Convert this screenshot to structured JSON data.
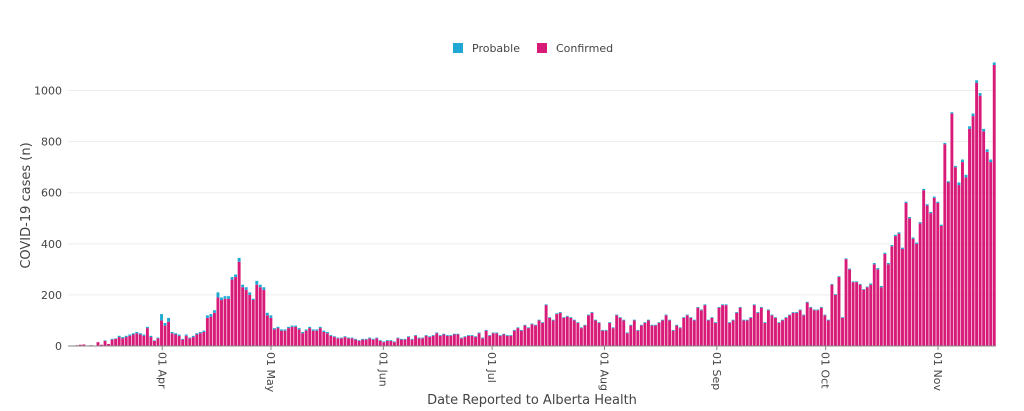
{
  "colors": {
    "probable": "#1fa8d4",
    "confirmed": "#d81b78",
    "grid": "#ececec",
    "axis": "#888888"
  },
  "legend": {
    "items": [
      {
        "name": "Probable",
        "color": "#1fa8d4"
      },
      {
        "name": "Confirmed",
        "color": "#d81b78"
      }
    ],
    "placement": "top-center"
  },
  "chart_data": {
    "type": "bar",
    "stacked": true,
    "xlabel": "Date Reported to Alberta Health",
    "ylabel": "COVID-19 cases (n)",
    "ylim": [
      0,
      1100
    ],
    "yticks": [
      0,
      200,
      400,
      600,
      800,
      1000
    ],
    "x_start": "2020-03-06",
    "x_end": "2020-11-17",
    "xticks": [
      {
        "date": "2020-04-01",
        "label": "01 Apr"
      },
      {
        "date": "2020-05-01",
        "label": "01 May"
      },
      {
        "date": "2020-06-01",
        "label": "01 Jun"
      },
      {
        "date": "2020-07-01",
        "label": "01 Jul"
      },
      {
        "date": "2020-08-01",
        "label": "01 Aug"
      },
      {
        "date": "2020-09-01",
        "label": "01 Sep"
      },
      {
        "date": "2020-10-01",
        "label": "01 Oct"
      },
      {
        "date": "2020-11-01",
        "label": "01 Nov"
      }
    ],
    "grid": true,
    "series": [
      {
        "name": "Confirmed",
        "values": [
          1,
          2,
          3,
          5,
          6,
          1,
          3,
          2,
          15,
          5,
          20,
          8,
          25,
          28,
          35,
          30,
          35,
          40,
          45,
          50,
          45,
          40,
          70,
          35,
          20,
          30,
          100,
          80,
          95,
          50,
          45,
          40,
          25,
          40,
          30,
          35,
          45,
          50,
          55,
          110,
          115,
          130,
          190,
          180,
          185,
          185,
          260,
          270,
          330,
          230,
          220,
          200,
          180,
          240,
          230,
          220,
          120,
          110,
          65,
          70,
          60,
          60,
          70,
          75,
          75,
          65,
          50,
          60,
          70,
          60,
          60,
          70,
          55,
          50,
          40,
          35,
          30,
          30,
          35,
          30,
          30,
          25,
          20,
          25,
          25,
          30,
          25,
          30,
          20,
          15,
          20,
          20,
          15,
          30,
          25,
          25,
          35,
          25,
          40,
          30,
          30,
          40,
          35,
          40,
          50,
          40,
          45,
          40,
          40,
          45,
          45,
          30,
          35,
          40,
          40,
          35,
          50,
          30,
          60,
          40,
          50,
          50,
          40,
          45,
          40,
          40,
          60,
          70,
          60,
          80,
          70,
          85,
          80,
          100,
          90,
          160,
          110,
          100,
          125,
          130,
          110,
          115,
          110,
          100,
          90,
          70,
          80,
          120,
          130,
          100,
          90,
          60,
          60,
          90,
          70,
          120,
          110,
          100,
          50,
          80,
          100,
          60,
          80,
          90,
          100,
          80,
          80,
          90,
          100,
          120,
          100,
          60,
          80,
          70,
          110,
          120,
          110,
          100,
          150,
          140,
          160,
          100,
          110,
          90,
          150,
          160,
          160,
          90,
          100,
          130,
          150,
          100,
          100,
          110,
          160,
          130,
          150,
          90,
          140,
          120,
          110,
          90,
          100,
          110,
          120,
          130,
          130,
          140,
          120,
          170,
          150,
          140,
          140,
          150,
          120,
          100,
          240,
          200,
          270,
          110,
          340,
          300,
          250,
          250,
          240,
          220,
          230,
          240,
          320,
          300,
          230,
          360,
          320,
          390,
          430,
          440,
          380,
          560,
          500,
          420,
          400,
          480,
          610,
          550,
          520,
          580,
          560,
          470,
          790,
          640,
          910,
          700,
          630,
          720,
          660,
          850,
          900,
          1030,
          980,
          840,
          760,
          720,
          1100
        ],
        "color": "#d81b78"
      },
      {
        "name": "Probable",
        "values": [
          0,
          0,
          0,
          0,
          0,
          0,
          0,
          0,
          0,
          0,
          2,
          0,
          3,
          2,
          5,
          5,
          5,
          5,
          5,
          5,
          5,
          5,
          5,
          5,
          2,
          3,
          25,
          10,
          15,
          5,
          5,
          5,
          3,
          5,
          3,
          5,
          5,
          5,
          5,
          10,
          10,
          10,
          20,
          10,
          10,
          10,
          10,
          10,
          15,
          10,
          10,
          10,
          5,
          15,
          10,
          10,
          10,
          10,
          5,
          5,
          5,
          5,
          5,
          5,
          5,
          5,
          5,
          5,
          5,
          5,
          5,
          5,
          5,
          5,
          3,
          3,
          3,
          3,
          3,
          3,
          3,
          3,
          3,
          3,
          3,
          3,
          3,
          3,
          3,
          3,
          3,
          3,
          3,
          3,
          3,
          3,
          3,
          3,
          3,
          3,
          3,
          3,
          3,
          3,
          3,
          3,
          3,
          3,
          3,
          3,
          3,
          3,
          3,
          3,
          3,
          3,
          3,
          3,
          3,
          3,
          3,
          3,
          3,
          3,
          3,
          3,
          3,
          3,
          3,
          3,
          3,
          3,
          3,
          3,
          3,
          3,
          3,
          3,
          3,
          3,
          3,
          3,
          3,
          3,
          3,
          3,
          3,
          3,
          3,
          3,
          3,
          3,
          3,
          3,
          3,
          3,
          3,
          3,
          3,
          3,
          3,
          3,
          3,
          3,
          3,
          3,
          3,
          3,
          3,
          3,
          3,
          3,
          3,
          3,
          3,
          3,
          3,
          3,
          3,
          3,
          3,
          3,
          3,
          3,
          3,
          3,
          3,
          3,
          3,
          3,
          3,
          3,
          3,
          3,
          3,
          3,
          3,
          3,
          3,
          3,
          3,
          3,
          3,
          3,
          3,
          3,
          3,
          3,
          3,
          3,
          3,
          3,
          3,
          3,
          3,
          3,
          3,
          3,
          3,
          3,
          3,
          3,
          3,
          3,
          3,
          3,
          3,
          5,
          5,
          5,
          5,
          5,
          5,
          5,
          5,
          5,
          5,
          5,
          5,
          5,
          5,
          5,
          5,
          5,
          5,
          5,
          5,
          5,
          5,
          5,
          5,
          5,
          10,
          10,
          10,
          10,
          10,
          10,
          10,
          10,
          10,
          10,
          10,
          10,
          10,
          10,
          10,
          10,
          10,
          10,
          10,
          10,
          10
        ],
        "color": "#1fa8d4"
      }
    ]
  }
}
